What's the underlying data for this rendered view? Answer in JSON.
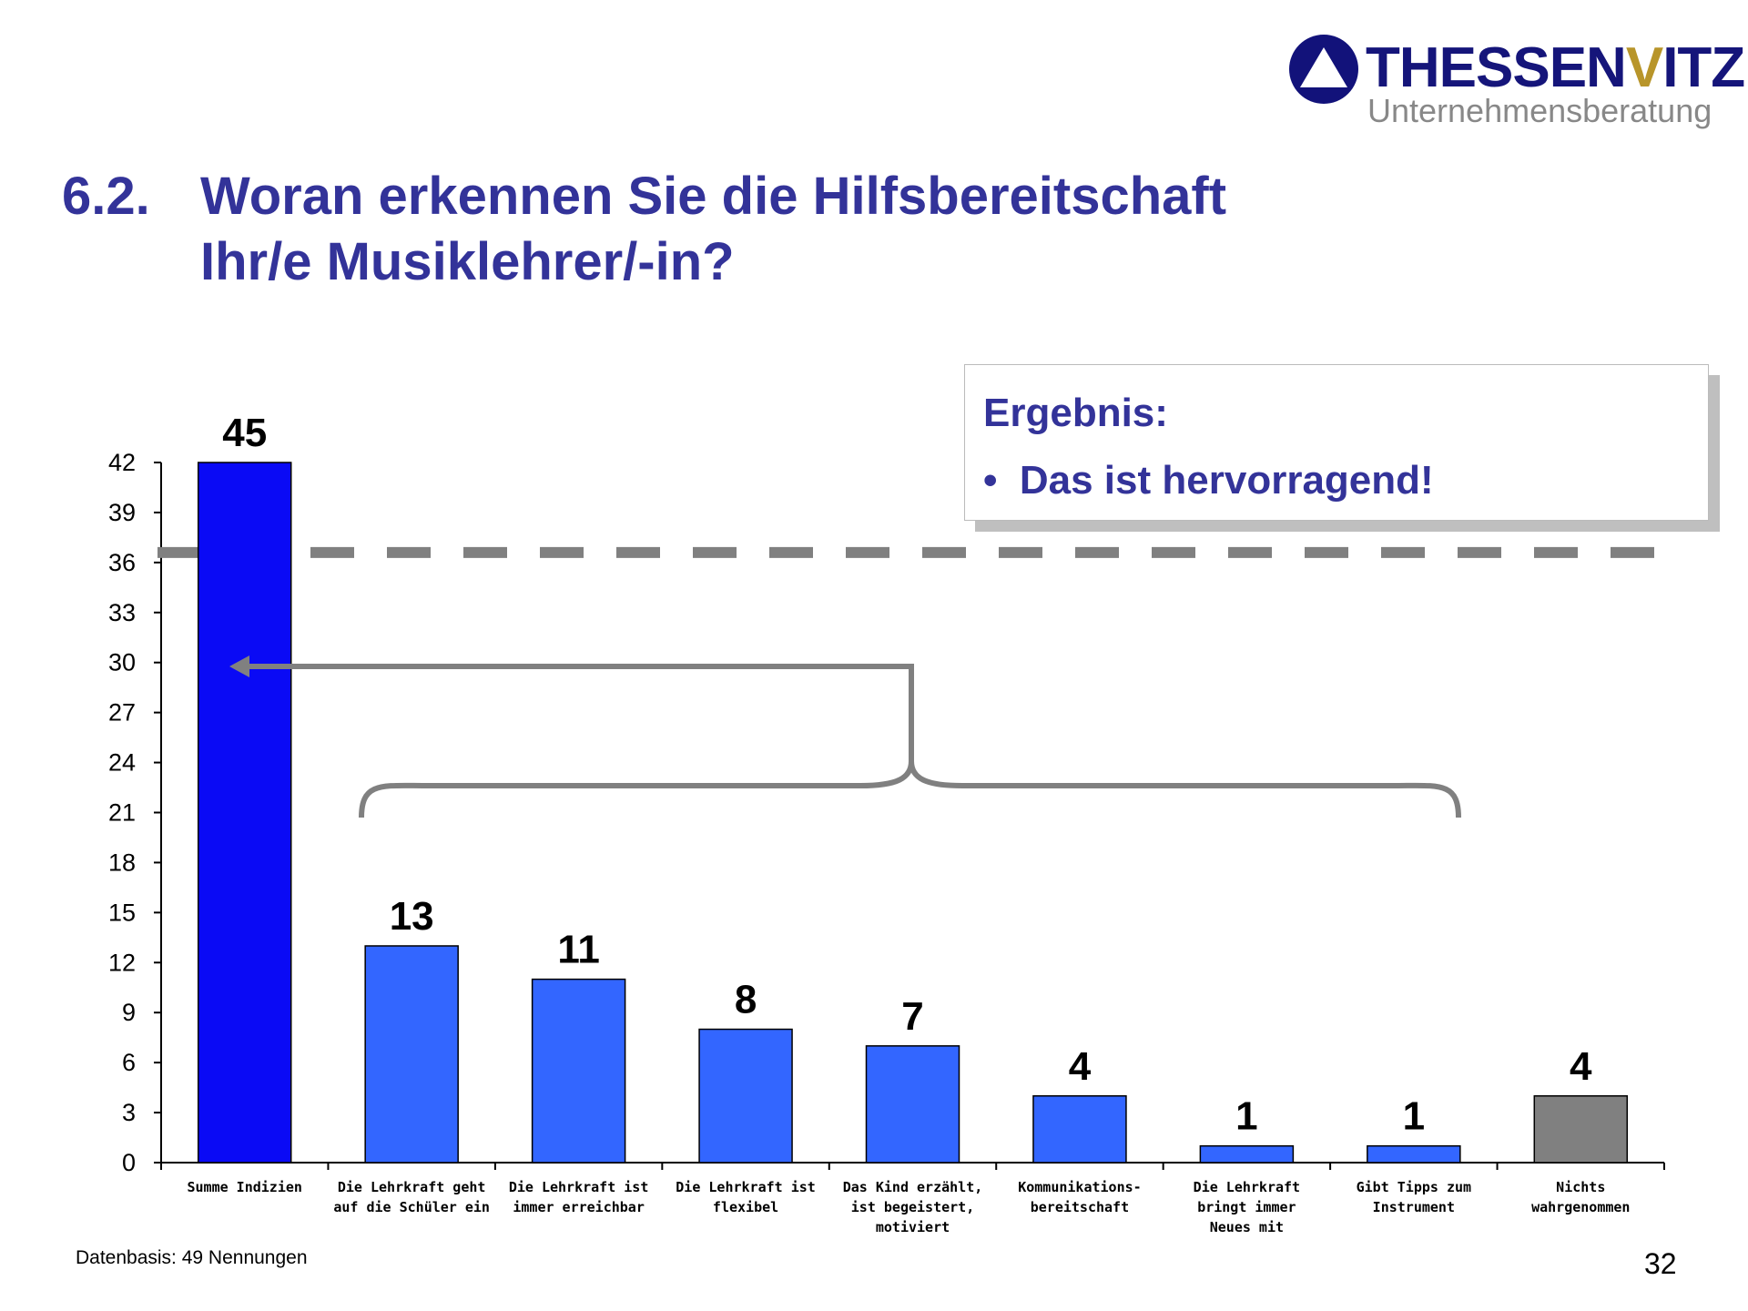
{
  "logo": {
    "name_part1": "THESSEN",
    "name_v": "V",
    "name_part2": "ITZ",
    "subtitle": "Unternehmensberatung"
  },
  "title": {
    "number": "6.2.",
    "line1": "Woran erkennen Sie die Hilfsbereitschaft",
    "line2": "Ihr/e Musiklehrer/-in?"
  },
  "result_box": {
    "heading": "Ergebnis:",
    "bullet": "•",
    "item": "Das ist hervorragend!"
  },
  "footnote": "Datenbasis: 49 Nennungen",
  "page_number": "32",
  "chart_data": {
    "type": "bar",
    "title": "",
    "xlabel": "",
    "ylabel": "",
    "ylim": [
      0,
      42
    ],
    "yticks": [
      0,
      3,
      6,
      9,
      12,
      15,
      18,
      21,
      24,
      27,
      30,
      33,
      36,
      39,
      42
    ],
    "categories": [
      [
        "Summe Indizien"
      ],
      [
        "Die Lehrkraft geht",
        "auf die Schüler ein"
      ],
      [
        "Die Lehrkraft ist",
        "immer erreichbar"
      ],
      [
        "Die Lehrkraft ist",
        "flexibel"
      ],
      [
        "Das Kind erzählt,",
        "ist begeistert,",
        "motiviert"
      ],
      [
        "Kommunikations-",
        "bereitschaft"
      ],
      [
        "Die Lehrkraft",
        "bringt immer",
        "Neues mit"
      ],
      [
        "Gibt Tipps zum",
        "Instrument"
      ],
      [
        "Nichts",
        "wahrgenommen"
      ]
    ],
    "values": [
      45,
      13,
      11,
      8,
      7,
      4,
      1,
      1,
      4
    ],
    "data_labels": [
      "45",
      "13",
      "11",
      "8",
      "7",
      "4",
      "1",
      "1",
      "4"
    ],
    "bar_colors": [
      "#0a0af5",
      "#3366ff",
      "#3366ff",
      "#3366ff",
      "#3366ff",
      "#3366ff",
      "#3366ff",
      "#3366ff",
      "#808080"
    ],
    "reference_line": {
      "value": 36.6,
      "style": "dashed",
      "color": "#808080"
    },
    "annotation": "bracket grouping categories 2-8 with arrow pointing to first bar (sum)",
    "grid": false,
    "legend": "none"
  }
}
